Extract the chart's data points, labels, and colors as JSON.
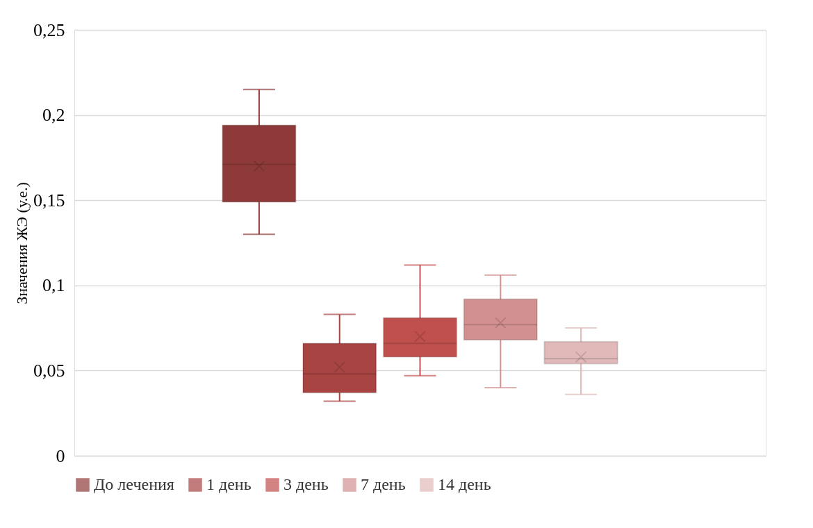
{
  "chart_data": {
    "type": "box",
    "ylabel": "Значения ЖЭ (у.е.)",
    "categories": [
      null
    ],
    "ylim": [
      0,
      0.25
    ],
    "yticks": [
      {
        "value": 0,
        "label": "0"
      },
      {
        "value": 0.05,
        "label": "0,05"
      },
      {
        "value": 0.1,
        "label": "0,1"
      },
      {
        "value": 0.15,
        "label": "0,15"
      },
      {
        "value": 0.2,
        "label": "0,2"
      },
      {
        "value": 0.25,
        "label": "0,25"
      }
    ],
    "grid": "y",
    "legend": "bottom",
    "tick_labels": "y",
    "series": [
      {
        "name": "До лечения",
        "color": "#8e3a3a",
        "boxes": [
          {
            "low": 0.13,
            "q1": 0.149,
            "median": 0.171,
            "q3": 0.194,
            "high": 0.215,
            "mean": 0.17
          }
        ]
      },
      {
        "name": "1 день",
        "color": "#a84543",
        "boxes": [
          {
            "low": 0.032,
            "q1": 0.037,
            "median": 0.048,
            "q3": 0.066,
            "high": 0.083,
            "mean": 0.052
          }
        ]
      },
      {
        "name": "3 день",
        "color": "#c0504d",
        "boxes": [
          {
            "low": 0.047,
            "q1": 0.058,
            "median": 0.066,
            "q3": 0.081,
            "high": 0.112,
            "mean": 0.07
          }
        ]
      },
      {
        "name": "7 день",
        "color": "#d39090",
        "boxes": [
          {
            "low": 0.04,
            "q1": 0.068,
            "median": 0.077,
            "q3": 0.092,
            "high": 0.106,
            "mean": 0.078
          }
        ]
      },
      {
        "name": "14 день",
        "color": "#e0b9b8",
        "boxes": [
          {
            "low": 0.036,
            "q1": 0.054,
            "median": 0.057,
            "q3": 0.067,
            "high": 0.075,
            "mean": 0.058
          }
        ]
      }
    ]
  }
}
